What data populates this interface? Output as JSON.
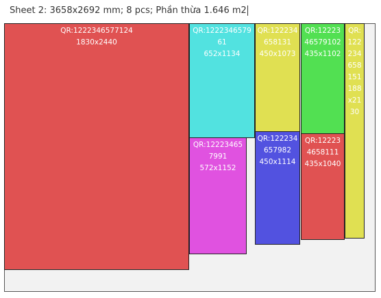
{
  "title": "Sheet 2: 3658x2692 mm; 8 pcs; Phần thừa 1.646 m2",
  "pieces": [
    {
      "qr": "QR:1222346577124",
      "size": "1830x2440"
    },
    {
      "qr": "QR:122234657961",
      "size": "652x1134"
    },
    {
      "qr": "QR:122234658131",
      "size": "450x1073"
    },
    {
      "qr": "QR:1222346579102",
      "size": "435x1102"
    },
    {
      "qr": "QR:122234658151",
      "size": "188x2130"
    },
    {
      "qr": "QR:122234657991",
      "size": "572x1152"
    },
    {
      "qr": "QR:122234657982",
      "size": "450x1114"
    },
    {
      "qr": "QR:122234658111",
      "size": "435x1040"
    }
  ]
}
